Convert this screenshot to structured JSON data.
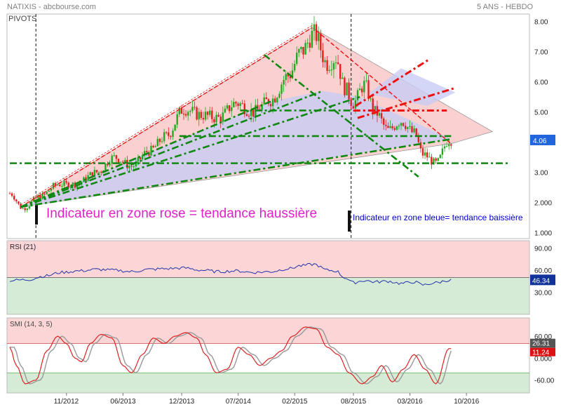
{
  "header": {
    "source": "NATIXIS - abcbourse.com",
    "period": "5 ANS - HEBDO",
    "pivots_label": "PIVOTS"
  },
  "annotations": {
    "pink_zone": "Indicateur en zone rose = tendance haussière",
    "blue_zone": "Indicateur en zone bleue= tendance baissière"
  },
  "colors": {
    "up_candle": "#22aa22",
    "down_candle": "#dd2222",
    "pink_zone": "#f9c8c8",
    "blue_zone": "#c8ccf4",
    "support_green": "#118811",
    "resistance_red": "#ee1111",
    "rsi_line": "#2233aa",
    "smi_line": "#dd2222",
    "smi_signal": "#999999",
    "overbought_bg": "#fcd6d6",
    "oversold_bg": "#d6ebd6",
    "price_badge": "#2266dd",
    "rsi_badge": "#113399",
    "smi_badge": "#555555",
    "smi_signal_badge": "#dd1111"
  },
  "chart_data": [
    {
      "type": "candlestick",
      "panel": "price",
      "title": "NATIXIS",
      "x_ticks": [
        "11/2012",
        "06/2013",
        "12/2013",
        "07/2014",
        "02/2015",
        "08/2015",
        "03/2016",
        "10/2016"
      ],
      "y_ticks": [
        "1.000",
        "2.000",
        "3.00",
        "4.00",
        "5.00",
        "6.00",
        "7.00",
        "8.00"
      ],
      "ylim": [
        0.8,
        8.25
      ],
      "last_value": "4.06",
      "weekly_close_anchors": [
        {
          "t": 0,
          "v": 2.3
        },
        {
          "t": 6,
          "v": 1.8
        },
        {
          "t": 14,
          "v": 2.2
        },
        {
          "t": 22,
          "v": 2.6
        },
        {
          "t": 30,
          "v": 2.6
        },
        {
          "t": 40,
          "v": 3.0
        },
        {
          "t": 48,
          "v": 3.5
        },
        {
          "t": 56,
          "v": 3.2
        },
        {
          "t": 64,
          "v": 3.7
        },
        {
          "t": 72,
          "v": 4.2
        },
        {
          "t": 80,
          "v": 5.1
        },
        {
          "t": 88,
          "v": 4.9
        },
        {
          "t": 96,
          "v": 4.8
        },
        {
          "t": 104,
          "v": 5.3
        },
        {
          "t": 112,
          "v": 5.0
        },
        {
          "t": 120,
          "v": 5.4
        },
        {
          "t": 128,
          "v": 6.2
        },
        {
          "t": 134,
          "v": 7.0
        },
        {
          "t": 140,
          "v": 7.6
        },
        {
          "t": 146,
          "v": 6.6
        },
        {
          "t": 150,
          "v": 6.8
        },
        {
          "t": 154,
          "v": 5.8
        },
        {
          "t": 158,
          "v": 5.3
        },
        {
          "t": 163,
          "v": 5.9
        },
        {
          "t": 168,
          "v": 5.0
        },
        {
          "t": 174,
          "v": 4.4
        },
        {
          "t": 180,
          "v": 4.7
        },
        {
          "t": 186,
          "v": 4.3
        },
        {
          "t": 190,
          "v": 3.6
        },
        {
          "t": 196,
          "v": 3.3
        },
        {
          "t": 202,
          "v": 4.06
        }
      ],
      "pivot_lines": [
        {
          "style": "red-dashed",
          "from": {
            "t": 5,
            "v": 1.85
          },
          "to": {
            "t": 139,
            "v": 7.8
          }
        },
        {
          "style": "red-dashed",
          "from": {
            "t": 141,
            "v": 7.7
          },
          "to": {
            "t": 203,
            "v": 3.95
          }
        },
        {
          "style": "red-dashdot",
          "from": {
            "t": 159,
            "v": 5.2
          },
          "to": {
            "t": 193,
            "v": 6.75
          }
        },
        {
          "style": "red-dashdot",
          "from": {
            "t": 160,
            "v": 4.8
          },
          "to": {
            "t": 205,
            "v": 5.8
          }
        },
        {
          "style": "red-dashdot",
          "from": {
            "t": 158,
            "v": 5.05
          },
          "to": {
            "t": 201,
            "v": 5.05
          }
        },
        {
          "style": "green-dashdot",
          "from": {
            "t": 0,
            "v": 3.3
          },
          "to": {
            "t": 230,
            "v": 3.3
          }
        },
        {
          "style": "green-dashdot",
          "from": {
            "t": 78,
            "v": 4.2
          },
          "to": {
            "t": 203,
            "v": 4.2
          }
        },
        {
          "style": "green-dashdot",
          "from": {
            "t": 106,
            "v": 5.05
          },
          "to": {
            "t": 158,
            "v": 5.05
          }
        },
        {
          "style": "green-dashdot",
          "from": {
            "t": 5,
            "v": 1.85
          },
          "to": {
            "t": 203,
            "v": 4.1
          }
        },
        {
          "style": "green-dashdot",
          "from": {
            "t": 5,
            "v": 1.85
          },
          "to": {
            "t": 161,
            "v": 5.5
          }
        },
        {
          "style": "green-dashdot",
          "from": {
            "t": 5,
            "v": 1.85
          },
          "to": {
            "t": 144,
            "v": 5.7
          }
        },
        {
          "style": "green-dashdot",
          "from": {
            "t": 5,
            "v": 1.85
          },
          "to": {
            "t": 120,
            "v": 5.35
          }
        },
        {
          "style": "green-dashdot",
          "from": {
            "t": 117,
            "v": 6.9
          },
          "to": {
            "t": 188,
            "v": 2.85
          }
        }
      ]
    },
    {
      "type": "line",
      "panel": "indicator",
      "title": "RSI (21)",
      "y_ticks": [
        "90.00",
        "60.00",
        "30.00"
      ],
      "ylim": [
        0,
        100
      ],
      "overbought": 50,
      "last_value": "46.34",
      "anchors": [
        {
          "t": 0,
          "v": 46
        },
        {
          "t": 8,
          "v": 47
        },
        {
          "t": 16,
          "v": 52
        },
        {
          "t": 24,
          "v": 57
        },
        {
          "t": 32,
          "v": 59
        },
        {
          "t": 40,
          "v": 61
        },
        {
          "t": 48,
          "v": 60
        },
        {
          "t": 56,
          "v": 58
        },
        {
          "t": 64,
          "v": 61
        },
        {
          "t": 72,
          "v": 62
        },
        {
          "t": 80,
          "v": 63
        },
        {
          "t": 88,
          "v": 60
        },
        {
          "t": 96,
          "v": 58
        },
        {
          "t": 104,
          "v": 59
        },
        {
          "t": 112,
          "v": 57
        },
        {
          "t": 120,
          "v": 58
        },
        {
          "t": 128,
          "v": 62
        },
        {
          "t": 134,
          "v": 66
        },
        {
          "t": 140,
          "v": 68
        },
        {
          "t": 146,
          "v": 60
        },
        {
          "t": 150,
          "v": 59
        },
        {
          "t": 154,
          "v": 50
        },
        {
          "t": 158,
          "v": 43
        },
        {
          "t": 163,
          "v": 46
        },
        {
          "t": 168,
          "v": 44
        },
        {
          "t": 174,
          "v": 45
        },
        {
          "t": 180,
          "v": 42
        },
        {
          "t": 186,
          "v": 44
        },
        {
          "t": 190,
          "v": 40
        },
        {
          "t": 196,
          "v": 43
        },
        {
          "t": 202,
          "v": 46.34
        }
      ]
    },
    {
      "type": "line",
      "panel": "indicator",
      "title": "SMI (14, 3, 5)",
      "y_ticks": [
        "60.00",
        "0.000",
        "-60.00"
      ],
      "ylim": [
        -95,
        110
      ],
      "overbought": 40,
      "oversold": -40,
      "last_value": "26.31",
      "signal_last_value": "11.24",
      "anchors": [
        {
          "t": 0,
          "v": 30
        },
        {
          "t": 3,
          "v": -20
        },
        {
          "t": 7,
          "v": -70
        },
        {
          "t": 12,
          "v": -60
        },
        {
          "t": 17,
          "v": 20
        },
        {
          "t": 22,
          "v": 60
        },
        {
          "t": 26,
          "v": 40
        },
        {
          "t": 30,
          "v": 0
        },
        {
          "t": 33,
          "v": -10
        },
        {
          "t": 37,
          "v": 40
        },
        {
          "t": 42,
          "v": 65
        },
        {
          "t": 47,
          "v": 55
        },
        {
          "t": 52,
          "v": -20
        },
        {
          "t": 56,
          "v": -40
        },
        {
          "t": 61,
          "v": 10
        },
        {
          "t": 66,
          "v": 55
        },
        {
          "t": 71,
          "v": 40
        },
        {
          "t": 76,
          "v": 60
        },
        {
          "t": 81,
          "v": 70
        },
        {
          "t": 86,
          "v": 55
        },
        {
          "t": 90,
          "v": 10
        },
        {
          "t": 95,
          "v": -40
        },
        {
          "t": 100,
          "v": -30
        },
        {
          "t": 105,
          "v": 30
        },
        {
          "t": 110,
          "v": 10
        },
        {
          "t": 115,
          "v": -20
        },
        {
          "t": 120,
          "v": 0
        },
        {
          "t": 125,
          "v": 20
        },
        {
          "t": 130,
          "v": 60
        },
        {
          "t": 136,
          "v": 85
        },
        {
          "t": 141,
          "v": 80
        },
        {
          "t": 146,
          "v": 30
        },
        {
          "t": 151,
          "v": 10
        },
        {
          "t": 156,
          "v": -40
        },
        {
          "t": 162,
          "v": -70
        },
        {
          "t": 167,
          "v": -50
        },
        {
          "t": 171,
          "v": -20
        },
        {
          "t": 176,
          "v": -65
        },
        {
          "t": 181,
          "v": -30
        },
        {
          "t": 186,
          "v": 10
        },
        {
          "t": 191,
          "v": -30
        },
        {
          "t": 196,
          "v": -70
        },
        {
          "t": 202,
          "v": 26.31
        }
      ]
    }
  ]
}
